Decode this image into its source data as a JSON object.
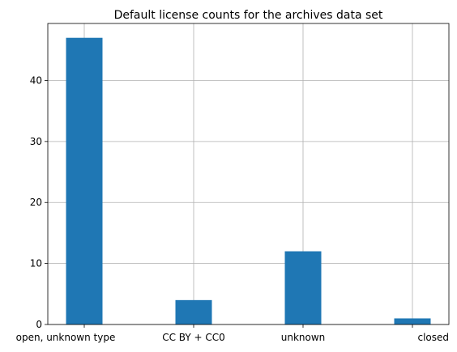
{
  "chart_data": {
    "type": "bar",
    "title": "Default license counts for the archives data set",
    "categories": [
      "open, unknown type",
      "CC BY + CC0",
      "unknown",
      "closed"
    ],
    "values": [
      47,
      4,
      12,
      1
    ],
    "xlabel": "",
    "ylabel": "",
    "ylim": [
      0,
      49.35
    ],
    "yticks": [
      0,
      10,
      20,
      30,
      40
    ],
    "grid": true,
    "bar_color": "#1f77b4"
  }
}
